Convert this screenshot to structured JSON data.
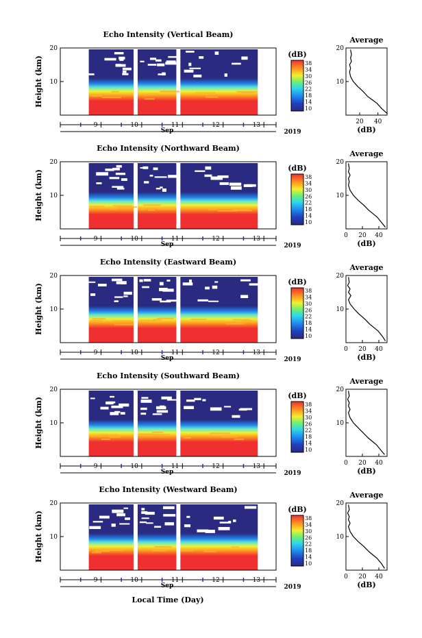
{
  "figure": {
    "xlabel_bottom": "Local Time (Day)",
    "month": "Sep",
    "year": "2019",
    "unit": "(dB)",
    "avg_title": "Average"
  },
  "chart_data": [
    {
      "type": "heatmap",
      "title": "Echo Intensity (Vertical Beam)",
      "ylabel": "Height (km)",
      "ylim": [
        0,
        20
      ],
      "y_ticks": [
        10,
        20
      ],
      "x_ticks": [
        "9",
        "10",
        "11",
        "12",
        "13"
      ],
      "xlim": [
        8.0,
        13.3
      ],
      "data_intervals": [
        [
          8.7,
          9.8
        ],
        [
          9.9,
          10.85
        ],
        [
          10.95,
          12.85
        ]
      ],
      "colorbar": {
        "unit": "(dB)",
        "ticks": [
          10,
          14,
          18,
          22,
          26,
          30,
          34,
          38
        ]
      },
      "average": {
        "title": "Average",
        "xlabel": "(dB)",
        "x_ticks": [
          20,
          40
        ],
        "xlim": [
          5,
          50
        ],
        "ylim": [
          0,
          20
        ],
        "profile": [
          [
            50,
            0.5
          ],
          [
            44,
            2
          ],
          [
            39,
            3.5
          ],
          [
            34,
            4.5
          ],
          [
            29,
            5.5
          ],
          [
            24,
            7
          ],
          [
            18,
            8.5
          ],
          [
            13,
            10
          ],
          [
            10,
            11.5
          ],
          [
            9,
            12.8
          ],
          [
            10,
            14
          ],
          [
            9,
            15
          ],
          [
            11,
            16
          ],
          [
            10,
            17
          ],
          [
            11,
            18
          ],
          [
            10,
            19.5
          ]
        ]
      }
    },
    {
      "type": "heatmap",
      "title": "Echo Intensity (Northward Beam)",
      "ylabel": "Height (km)",
      "ylim": [
        0,
        20
      ],
      "y_ticks": [
        10,
        20
      ],
      "x_ticks": [
        "9",
        "10",
        "11",
        "12",
        "13"
      ],
      "xlim": [
        8.0,
        13.3
      ],
      "data_intervals": [
        [
          8.7,
          9.8
        ],
        [
          9.9,
          10.85
        ],
        [
          10.95,
          12.85
        ]
      ],
      "colorbar": {
        "unit": "(dB)",
        "ticks": [
          10,
          14,
          18,
          22,
          26,
          30,
          34,
          38
        ]
      },
      "average": {
        "title": "Average",
        "xlabel": "(dB)",
        "x_ticks": [
          0,
          20,
          40
        ],
        "xlim": [
          0,
          50
        ],
        "ylim": [
          0,
          20
        ],
        "profile": [
          [
            48,
            0.5
          ],
          [
            43,
            2
          ],
          [
            38,
            3.5
          ],
          [
            33,
            4.5
          ],
          [
            28,
            5.5
          ],
          [
            22,
            7
          ],
          [
            15,
            8.5
          ],
          [
            9,
            10
          ],
          [
            5,
            11.5
          ],
          [
            3,
            13
          ],
          [
            4,
            14
          ],
          [
            3,
            15
          ],
          [
            5,
            16
          ],
          [
            3,
            17
          ],
          [
            4,
            18
          ],
          [
            3,
            19.5
          ]
        ]
      }
    },
    {
      "type": "heatmap",
      "title": "Echo Intensity (Eastward Beam)",
      "ylabel": "Height (km)",
      "ylim": [
        0,
        20
      ],
      "y_ticks": [
        10,
        20
      ],
      "x_ticks": [
        "9",
        "10",
        "11",
        "12",
        "13"
      ],
      "xlim": [
        8.0,
        13.3
      ],
      "data_intervals": [
        [
          8.7,
          9.8
        ],
        [
          9.9,
          10.85
        ],
        [
          10.95,
          12.85
        ]
      ],
      "colorbar": {
        "unit": "(dB)",
        "ticks": [
          10,
          14,
          18,
          22,
          26,
          30,
          34,
          38
        ]
      },
      "average": {
        "title": "Average",
        "xlabel": "(dB)",
        "x_ticks": [
          0,
          20,
          40
        ],
        "xlim": [
          0,
          50
        ],
        "ylim": [
          0,
          20
        ],
        "profile": [
          [
            48,
            0.5
          ],
          [
            44,
            2
          ],
          [
            39,
            3.5
          ],
          [
            34,
            4.5
          ],
          [
            29,
            5.5
          ],
          [
            23,
            7
          ],
          [
            16,
            8.5
          ],
          [
            10,
            10
          ],
          [
            5,
            11.5
          ],
          [
            3,
            12.8
          ],
          [
            6,
            14
          ],
          [
            3,
            15
          ],
          [
            5,
            16
          ],
          [
            2,
            17
          ],
          [
            4,
            18
          ],
          [
            3,
            19.5
          ]
        ]
      }
    },
    {
      "type": "heatmap",
      "title": "Echo Intensity (Southward Beam)",
      "ylabel": "Height (km)",
      "ylim": [
        0,
        20
      ],
      "y_ticks": [
        10,
        20
      ],
      "x_ticks": [
        "9",
        "10",
        "11",
        "12",
        "13"
      ],
      "xlim": [
        8.0,
        13.3
      ],
      "data_intervals": [
        [
          8.7,
          9.8
        ],
        [
          9.9,
          10.85
        ],
        [
          10.95,
          12.85
        ]
      ],
      "colorbar": {
        "unit": "(dB)",
        "ticks": [
          10,
          14,
          18,
          22,
          26,
          30,
          34,
          38
        ]
      },
      "average": {
        "title": "Average",
        "xlabel": "(dB)",
        "x_ticks": [
          0,
          20,
          40
        ],
        "xlim": [
          0,
          50
        ],
        "ylim": [
          0,
          20
        ],
        "profile": [
          [
            47,
            0.5
          ],
          [
            42,
            2
          ],
          [
            37,
            3.5
          ],
          [
            32,
            4.5
          ],
          [
            27,
            5.5
          ],
          [
            21,
            7
          ],
          [
            15,
            8.5
          ],
          [
            9,
            10
          ],
          [
            5,
            11.5
          ],
          [
            3,
            13
          ],
          [
            5,
            14
          ],
          [
            3,
            15
          ],
          [
            4,
            16
          ],
          [
            2,
            17
          ],
          [
            4,
            18
          ],
          [
            3,
            19.5
          ]
        ]
      }
    },
    {
      "type": "heatmap",
      "title": "Echo Intensity (Westward Beam)",
      "ylabel": "Height (km)",
      "ylim": [
        0,
        20
      ],
      "y_ticks": [
        10,
        20
      ],
      "x_ticks": [
        "9",
        "10",
        "11",
        "12",
        "13"
      ],
      "xlim": [
        8.0,
        13.3
      ],
      "data_intervals": [
        [
          8.7,
          9.8
        ],
        [
          9.9,
          10.85
        ],
        [
          10.95,
          12.85
        ]
      ],
      "colorbar": {
        "unit": "(dB)",
        "ticks": [
          10,
          14,
          18,
          22,
          26,
          30,
          34,
          38
        ]
      },
      "average": {
        "title": "Average",
        "xlabel": "(dB)",
        "x_ticks": [
          0,
          20,
          40
        ],
        "xlim": [
          0,
          50
        ],
        "ylim": [
          0,
          20
        ],
        "profile": [
          [
            47,
            0.5
          ],
          [
            43,
            2
          ],
          [
            38,
            3.5
          ],
          [
            33,
            4.5
          ],
          [
            28,
            5.5
          ],
          [
            22,
            7
          ],
          [
            15,
            8.5
          ],
          [
            9,
            10
          ],
          [
            5,
            11.5
          ],
          [
            3,
            13
          ],
          [
            5,
            14
          ],
          [
            3,
            15
          ],
          [
            4,
            16
          ],
          [
            2,
            17
          ],
          [
            4,
            18
          ],
          [
            3,
            19.5
          ]
        ]
      }
    }
  ]
}
